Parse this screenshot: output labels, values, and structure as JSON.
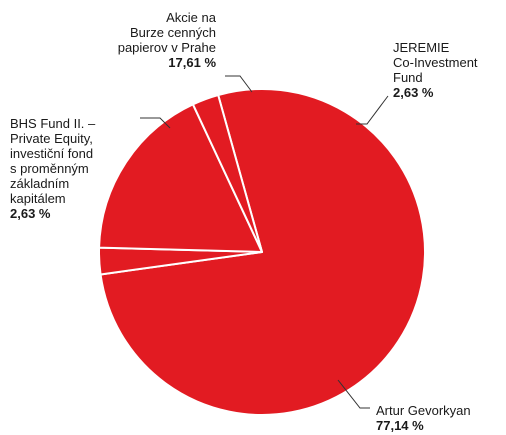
{
  "chart_data": {
    "type": "pie",
    "title": "",
    "colors": {
      "slice": "#e21b22",
      "border": "#ffffff",
      "leader": "#333333"
    },
    "slices": [
      {
        "label_lines": [
          "Artur Gevorkyan"
        ],
        "value": 77.14,
        "value_text": "77,14 %"
      },
      {
        "label_lines": [
          "BHS Fund II. –",
          "Private Equity,",
          "investiční fond",
          "s proměnným",
          "základním",
          "kapitálem"
        ],
        "value": 2.63,
        "value_text": "2,63 %"
      },
      {
        "label_lines": [
          "Akcie na",
          "Burze cenných",
          "papierov v Prahe"
        ],
        "value": 17.61,
        "value_text": "17,61 %"
      },
      {
        "label_lines": [
          "JEREMIE",
          "Co-Investment",
          "Fund"
        ],
        "value": 2.63,
        "value_text": "2,63 %"
      }
    ]
  }
}
